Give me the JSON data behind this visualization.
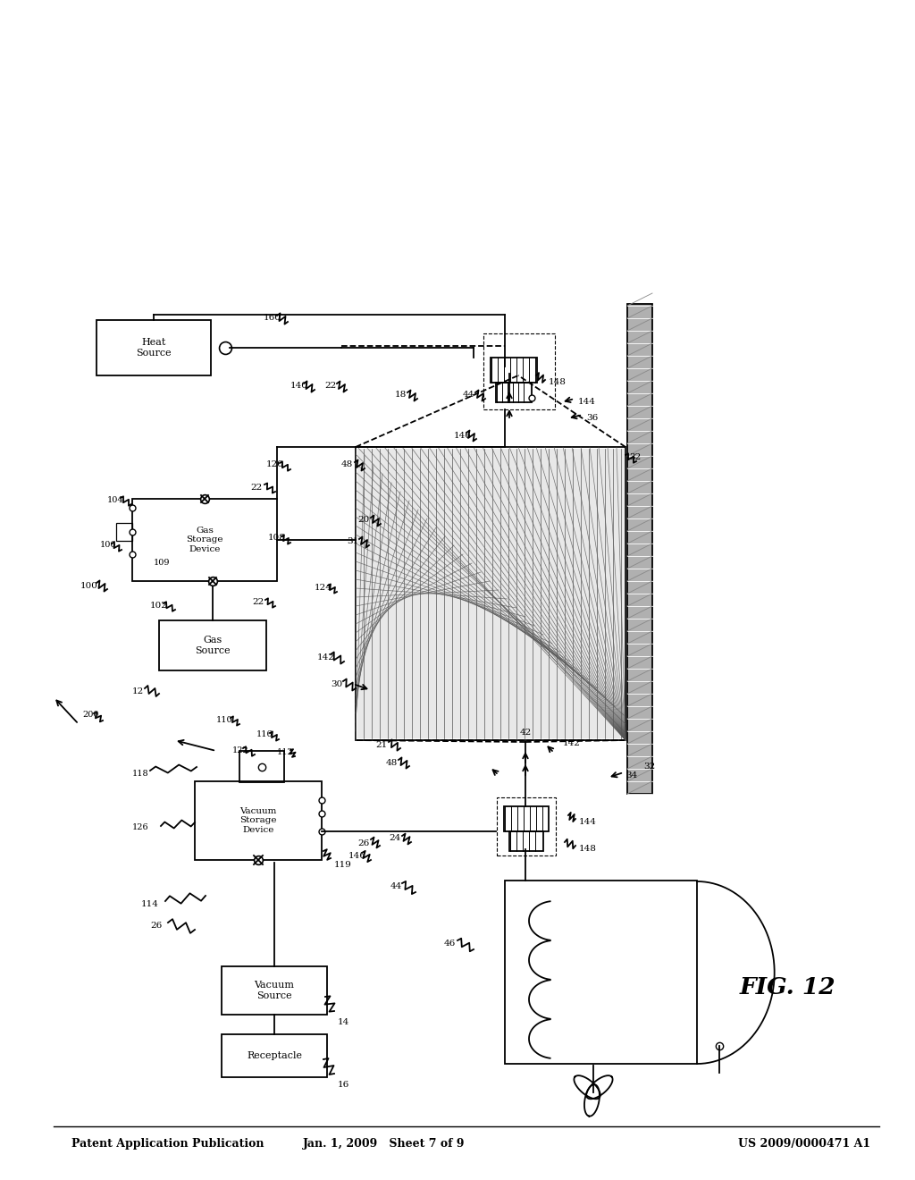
{
  "header_left": "Patent Application Publication",
  "header_mid": "Jan. 1, 2009   Sheet 7 of 9",
  "header_right": "US 2009/0000471 A1",
  "fig_label": "FIG. 12",
  "background": "#ffffff",
  "line_color": "#000000"
}
